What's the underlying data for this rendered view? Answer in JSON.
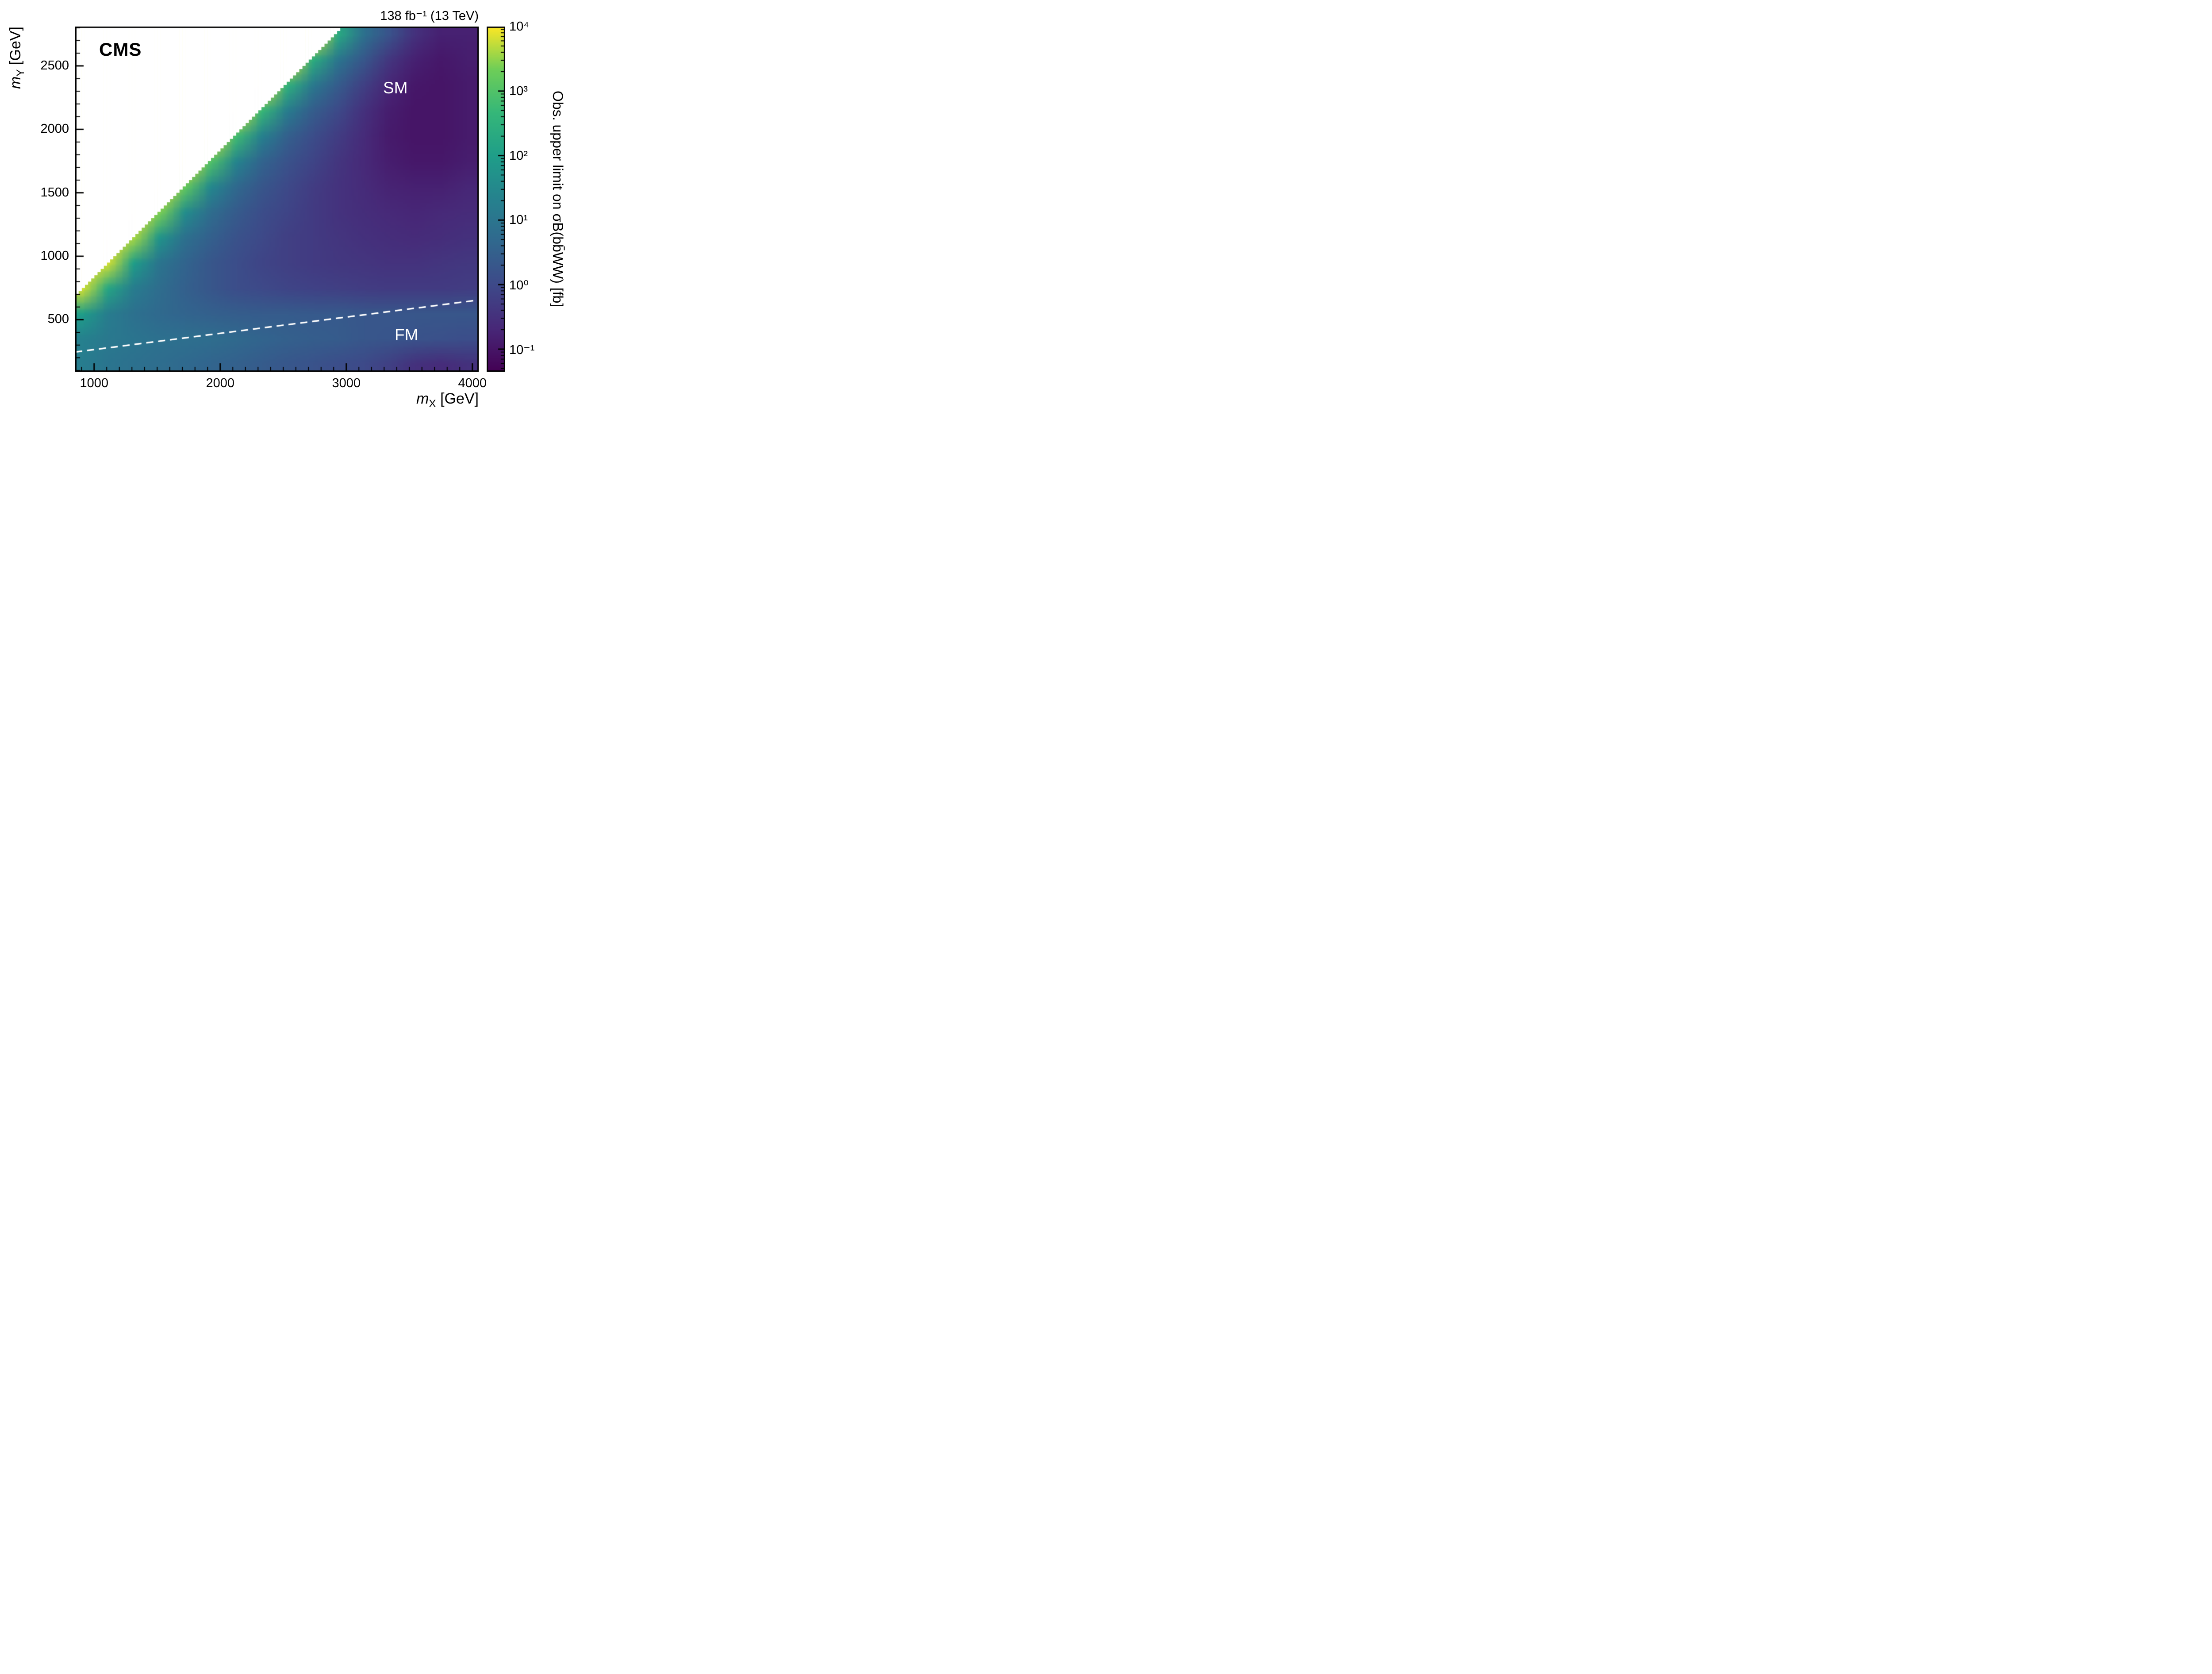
{
  "header": {
    "lumi": "138 fb⁻¹ (13 TeV)"
  },
  "labels": {
    "experiment": "CMS",
    "region_top": "SM",
    "region_bottom": "FM"
  },
  "axes": {
    "x": {
      "title_prefix": "m",
      "title_sub": "X",
      "title_suffix": " [GeV]",
      "min": 850,
      "max": 4050,
      "major_ticks": [
        1000,
        2000,
        3000,
        4000
      ],
      "minor_step": 100
    },
    "y": {
      "title_prefix": "m",
      "title_sub": "Y",
      "title_suffix": " [GeV]",
      "min": 90,
      "max": 2810,
      "major_ticks": [
        500,
        1000,
        1500,
        2000,
        2500
      ],
      "minor_step": 100
    }
  },
  "colorbar": {
    "title": "Obs. upper limit on σB(bb̄WW) [fb]",
    "scale": "log",
    "log10_min": -1.35,
    "log10_max": 4,
    "ticks": [
      {
        "exp": 4,
        "label": "10⁴"
      },
      {
        "exp": 3,
        "label": "10³"
      },
      {
        "exp": 2,
        "label": "10²"
      },
      {
        "exp": 1,
        "label": "10¹"
      },
      {
        "exp": 0,
        "label": "10⁰"
      },
      {
        "exp": -1,
        "label": "10⁻¹"
      }
    ],
    "viridis_stops": [
      [
        0.0,
        "#440154"
      ],
      [
        0.125,
        "#482878"
      ],
      [
        0.25,
        "#3e4989"
      ],
      [
        0.375,
        "#31688e"
      ],
      [
        0.5,
        "#26828e"
      ],
      [
        0.625,
        "#1f9e89"
      ],
      [
        0.75,
        "#35b779"
      ],
      [
        0.875,
        "#6ece58"
      ],
      [
        1.0,
        "#fde725"
      ]
    ]
  },
  "chart_data": {
    "type": "heatmap",
    "title": "",
    "xlabel": "m_X [GeV]",
    "ylabel": "m_Y [GeV]",
    "zlabel": "Obs. upper limit on σB(bb̄WW) [fb]",
    "xlim": [
      850,
      4050
    ],
    "ylim": [
      90,
      2810
    ],
    "z_scale": "log",
    "z_range_fb": [
      0.045,
      10000
    ],
    "colormap": "viridis",
    "kinematic_boundary": "white region above m_Y = m_X - 150 GeV",
    "kinematic_boundary_offset_gev": 150,
    "dashed_line": {
      "x1_gev": 850,
      "y1_gev": 245,
      "x2_gev": 4050,
      "y2_gev": 655
    },
    "x_gev": [
      900,
      1100,
      1300,
      1500,
      1700,
      1900,
      2100,
      2300,
      2500,
      2700,
      2900,
      3100,
      3300,
      3500,
      3700,
      3900
    ],
    "y_gev": [
      150,
      350,
      550,
      750,
      950,
      1150,
      1350,
      1550,
      1750,
      1950,
      2150,
      2350,
      2550,
      2750
    ],
    "log10_limit_fb": [
      [
        1.2,
        1.0,
        0.9,
        0.8,
        0.7,
        0.6,
        0.5,
        0.4,
        0.3,
        0.2,
        0.1,
        0.0,
        -0.2,
        -0.5,
        -0.6,
        -0.5
      ],
      [
        1.3,
        1.1,
        1.0,
        0.9,
        0.85,
        0.8,
        0.7,
        0.6,
        0.5,
        0.45,
        0.4,
        0.3,
        0.25,
        0.2,
        0.15,
        0.1
      ],
      [
        2.0,
        1.2,
        0.9,
        0.7,
        0.6,
        0.5,
        0.45,
        0.4,
        0.4,
        0.35,
        0.35,
        0.3,
        0.3,
        0.3,
        0.3,
        0.3
      ],
      [
        3.8,
        2.2,
        1.2,
        0.8,
        0.5,
        0.3,
        0.1,
        0.0,
        -0.1,
        -0.15,
        -0.2,
        -0.25,
        -0.3,
        -0.3,
        -0.3,
        -0.25
      ],
      [
        null,
        3.8,
        2.0,
        1.0,
        0.6,
        0.3,
        0.1,
        -0.1,
        -0.2,
        -0.3,
        -0.35,
        -0.4,
        -0.45,
        -0.45,
        -0.4,
        -0.35
      ],
      [
        null,
        null,
        3.6,
        1.8,
        0.9,
        0.5,
        0.2,
        0.0,
        -0.2,
        -0.3,
        -0.4,
        -0.5,
        -0.55,
        -0.6,
        -0.55,
        -0.5
      ],
      [
        null,
        null,
        null,
        3.4,
        1.6,
        0.8,
        0.4,
        0.1,
        -0.1,
        -0.3,
        -0.45,
        -0.55,
        -0.65,
        -0.7,
        -0.65,
        -0.6
      ],
      [
        null,
        null,
        null,
        null,
        3.2,
        1.5,
        0.7,
        0.3,
        0.0,
        -0.25,
        -0.45,
        -0.6,
        -0.75,
        -0.8,
        -0.8,
        -0.7
      ],
      [
        null,
        null,
        null,
        null,
        null,
        3.0,
        1.4,
        0.6,
        0.2,
        -0.1,
        -0.4,
        -0.65,
        -0.85,
        -0.95,
        -0.95,
        -0.85
      ],
      [
        null,
        null,
        null,
        null,
        null,
        null,
        2.8,
        1.3,
        0.5,
        0.1,
        -0.25,
        -0.6,
        -0.9,
        -1.0,
        -1.0,
        -0.9
      ],
      [
        null,
        null,
        null,
        null,
        null,
        null,
        null,
        2.7,
        1.2,
        0.45,
        0.0,
        -0.5,
        -0.85,
        -1.0,
        -1.0,
        -0.9
      ],
      [
        null,
        null,
        null,
        null,
        null,
        null,
        null,
        null,
        2.5,
        1.1,
        0.4,
        -0.2,
        -0.7,
        -0.95,
        -1.0,
        -0.9
      ],
      [
        null,
        null,
        null,
        null,
        null,
        null,
        null,
        null,
        null,
        2.4,
        1.0,
        0.3,
        -0.4,
        -0.8,
        -0.95,
        -0.85
      ],
      [
        null,
        null,
        null,
        null,
        null,
        null,
        null,
        null,
        null,
        null,
        2.3,
        0.9,
        0.2,
        -0.5,
        -0.8,
        -0.8
      ]
    ]
  }
}
